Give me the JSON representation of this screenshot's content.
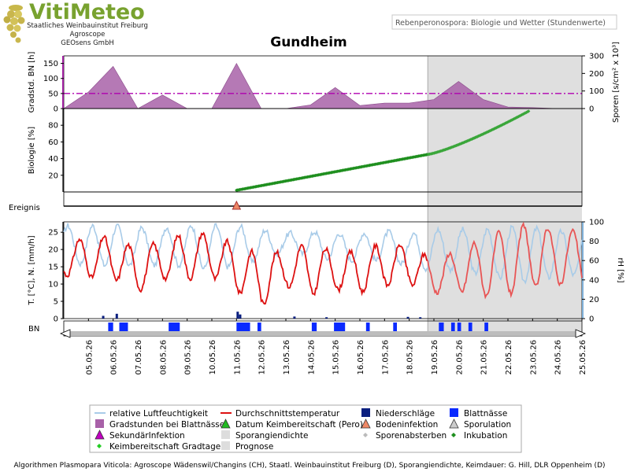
{
  "header": {
    "logo_title": "VitiMeteo",
    "logo_lines": [
      "Staatliches Weinbauinstitut Freiburg",
      "Agroscope",
      "GEOsens GmbH"
    ],
    "subtitle": "Rebenperonospora: Biologie und Wetter (Stundenwerte)",
    "station": "Gundheim"
  },
  "footer": "Algorithmen Plasmopara Viticola: Agroscope Wädenswil/Changins (CH), Staatl. Weinbauinstitut Freiburg (D), Sporangiendichte, Keimdauer: G. Hill, DLR Oppenheim (D)",
  "colors": {
    "degree_hours": "#a861a8",
    "threshold": "#b000b0",
    "incubation": "#1f8f1f",
    "humidity": "#a8cbe8",
    "temperature_obs": "#dd1111",
    "temperature_fc": "#e85555",
    "rain": "#0a1f7f",
    "wetness": "#0a2aff",
    "forecast_shade": "#d9d9d9"
  },
  "chart_data": {
    "type": "multi-panel time series",
    "x_dates": [
      "05.05.26",
      "06.05.26",
      "07.05.26",
      "08.05.26",
      "09.05.26",
      "10.05.26",
      "11.05.26",
      "12.05.26",
      "13.05.26",
      "14.05.26",
      "15.05.26",
      "16.05.26",
      "17.05.26",
      "18.05.26",
      "19.05.26",
      "20.05.26",
      "21.05.26",
      "22.05.26",
      "23.05.26",
      "24.05.26",
      "25.05.26"
    ],
    "x_range": [
      "04.05.26",
      "25.05.26"
    ],
    "forecast_start": "18.75",
    "panels": {
      "degree_hours": {
        "ylabel_left": "Gradstd. BN [h]",
        "ylabel_right": "Sporen [s/cm² x 10³]",
        "left_ticks": [
          "0",
          "50",
          "100",
          "150"
        ],
        "left_ylim": [
          0,
          175
        ],
        "right_ticks": [
          "0",
          "100",
          "200",
          "300"
        ],
        "right_ylim": [
          0,
          300
        ],
        "threshold": 50,
        "values": [
          [
            4.0,
            0
          ],
          [
            5.0,
            55
          ],
          [
            6.0,
            140
          ],
          [
            7.0,
            0
          ],
          [
            8.0,
            45
          ],
          [
            9.0,
            0
          ],
          [
            10.0,
            0
          ],
          [
            11.0,
            150
          ],
          [
            12.0,
            0
          ],
          [
            13.0,
            0
          ],
          [
            14.0,
            12
          ],
          [
            15.0,
            70
          ],
          [
            16.0,
            10
          ],
          [
            17.0,
            18
          ],
          [
            18.0,
            18
          ],
          [
            19.0,
            30
          ],
          [
            20.0,
            90
          ],
          [
            21.0,
            30
          ],
          [
            22.0,
            5
          ],
          [
            23.0,
            3
          ],
          [
            24.0,
            0
          ],
          [
            25.0,
            0
          ]
        ]
      },
      "biology": {
        "ylabel": "Biologie [%]",
        "ticks": [
          "20",
          "40",
          "60",
          "80"
        ],
        "ylim": [
          0,
          100
        ],
        "series": "Inkubation",
        "start_date": "11.05.26",
        "start_value": 2,
        "value_at_forecast_start": 45,
        "end_date": "22.85",
        "end_value": 97
      },
      "event": {
        "label": "Ereignis",
        "events": [
          {
            "type": "Bodeninfektion",
            "date": "11.05.26"
          }
        ]
      },
      "weather": {
        "ylabel_left": "T. [°C], N. [mm/h]",
        "ylabel_right": "rH [%]",
        "left_ticks": [
          "0",
          "5",
          "10",
          "15",
          "20",
          "25"
        ],
        "left_ylim": [
          0,
          28
        ],
        "right_ticks": [
          "0",
          "20",
          "40",
          "60",
          "80",
          "100"
        ],
        "right_ylim": [
          0,
          100
        ],
        "temperature_min_daily": [
          12.5,
          12.0,
          11.5,
          8.0,
          11.5,
          11.5,
          12.0,
          8.0,
          3.5,
          9.5,
          7.0,
          8.5,
          7.5,
          9.5,
          10.0,
          7.5,
          8.0,
          6.5,
          7.0,
          9.0,
          10.0
        ],
        "temperature_max_daily": [
          21.0,
          24.0,
          23.5,
          20.0,
          22.5,
          25.0,
          24.5,
          21.0,
          18.5,
          19.5,
          22.0,
          19.0,
          19.5,
          22.0,
          21.0,
          17.0,
          20.0,
          23.0,
          26.0,
          27.5,
          25.5
        ],
        "humidity_max_daily": [
          96,
          96,
          96,
          94,
          94,
          96,
          96,
          96,
          92,
          88,
          90,
          88,
          88,
          90,
          88,
          92,
          92,
          92,
          94,
          94,
          90
        ],
        "humidity_min_daily": [
          60,
          55,
          55,
          55,
          55,
          55,
          50,
          55,
          60,
          70,
          65,
          60,
          60,
          60,
          55,
          50,
          50,
          45,
          40,
          38,
          45
        ],
        "rain_mm": [
          [
            5.55,
            0.8
          ],
          [
            6.1,
            1.4
          ],
          [
            11.0,
            2.0
          ],
          [
            11.1,
            1.2
          ],
          [
            13.3,
            0.6
          ],
          [
            14.6,
            0.4
          ],
          [
            17.9,
            0.5
          ],
          [
            18.4,
            0.4
          ]
        ]
      },
      "wetness": {
        "label": "BN",
        "bars": [
          [
            5.8,
            6.0
          ],
          [
            6.25,
            6.6
          ],
          [
            8.25,
            8.7
          ],
          [
            11.0,
            11.55
          ],
          [
            11.85,
            12.0
          ],
          [
            14.05,
            14.25
          ],
          [
            14.95,
            15.4
          ],
          [
            16.25,
            16.4
          ],
          [
            17.35,
            17.5
          ],
          [
            19.2,
            19.4
          ],
          [
            19.7,
            19.85
          ],
          [
            19.95,
            20.1
          ],
          [
            20.4,
            20.55
          ],
          [
            21.05,
            21.2
          ]
        ]
      }
    },
    "legend": [
      {
        "label": "relative Luftfeuchtigkeit",
        "symbol": "line",
        "color": "#a8cbe8"
      },
      {
        "label": "Durchschnittstemperatur",
        "symbol": "line",
        "color": "#dd1111"
      },
      {
        "label": "Niederschläge",
        "symbol": "square",
        "color": "#0a1f7f"
      },
      {
        "label": "Blattnässe",
        "symbol": "square",
        "color": "#0a2aff"
      },
      {
        "label": "Gradstunden bei Blattnässe",
        "symbol": "square",
        "color": "#a861a8"
      },
      {
        "label": "Datum Keimbereitschaft (Pero)",
        "symbol": "triangle",
        "color": "#22bb22"
      },
      {
        "label": "Bodeninfektion",
        "symbol": "triangle",
        "color": "#ee8866"
      },
      {
        "label": "Sporulation",
        "symbol": "triangle",
        "color": "#cccccc"
      },
      {
        "label": "SekundärInfektion",
        "symbol": "triangle",
        "color": "#c000c0"
      },
      {
        "label": "Sporangiendichte",
        "symbol": "square",
        "color": "#dddddd"
      },
      {
        "label": "Sporenabsterben",
        "symbol": "diamond",
        "color": "#bbbbbb"
      },
      {
        "label": "Inkubation",
        "symbol": "diamond",
        "color": "#1f8f1f"
      },
      {
        "label": "Keimbereitschaft Gradtage",
        "symbol": "diamond",
        "color": "#22cc22"
      },
      {
        "label": "Prognose",
        "symbol": "square",
        "color": "#dddddd"
      }
    ]
  }
}
